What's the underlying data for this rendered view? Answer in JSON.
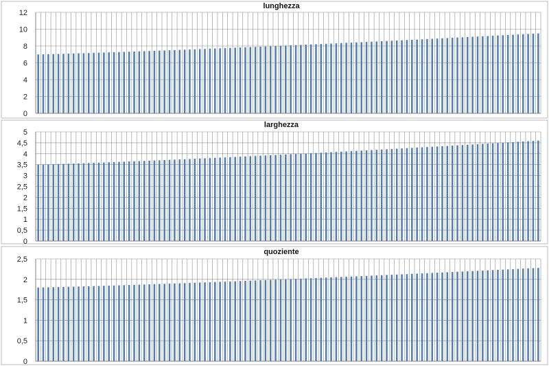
{
  "colors": {
    "bar": "#4f7db8",
    "grid": "#8c8c8c",
    "frame": "#b8b8b8"
  },
  "chart_data": [
    {
      "type": "bar",
      "title": "lunghezza",
      "ylim": [
        0,
        12
      ],
      "yticks": [
        0,
        2,
        4,
        6,
        8,
        10,
        12
      ],
      "ytick_labels": [
        "0",
        "2",
        "4",
        "6",
        "8",
        "10",
        "12"
      ],
      "grid": true,
      "legend": "none",
      "n": 100,
      "start": 7.0,
      "end": 9.5
    },
    {
      "type": "bar",
      "title": "larghezza",
      "ylim": [
        0,
        5
      ],
      "yticks": [
        0,
        0.5,
        1,
        1.5,
        2,
        2.5,
        3,
        3.5,
        4,
        4.5,
        5
      ],
      "ytick_labels": [
        "0",
        "0,5",
        "1",
        "1,5",
        "2",
        "2,5",
        "3",
        "3,5",
        "4",
        "4,5",
        "5"
      ],
      "grid": true,
      "legend": "none",
      "n": 100,
      "start": 3.5,
      "end": 4.6
    },
    {
      "type": "bar",
      "title": "quoziente",
      "ylim": [
        0,
        2.5
      ],
      "yticks": [
        0,
        0.5,
        1,
        1.5,
        2,
        2.5
      ],
      "ytick_labels": [
        "0",
        "0,5",
        "1",
        "1,5",
        "2",
        "2,5"
      ],
      "grid": true,
      "legend": "none",
      "n": 100,
      "start": 1.8,
      "end": 2.28
    }
  ]
}
